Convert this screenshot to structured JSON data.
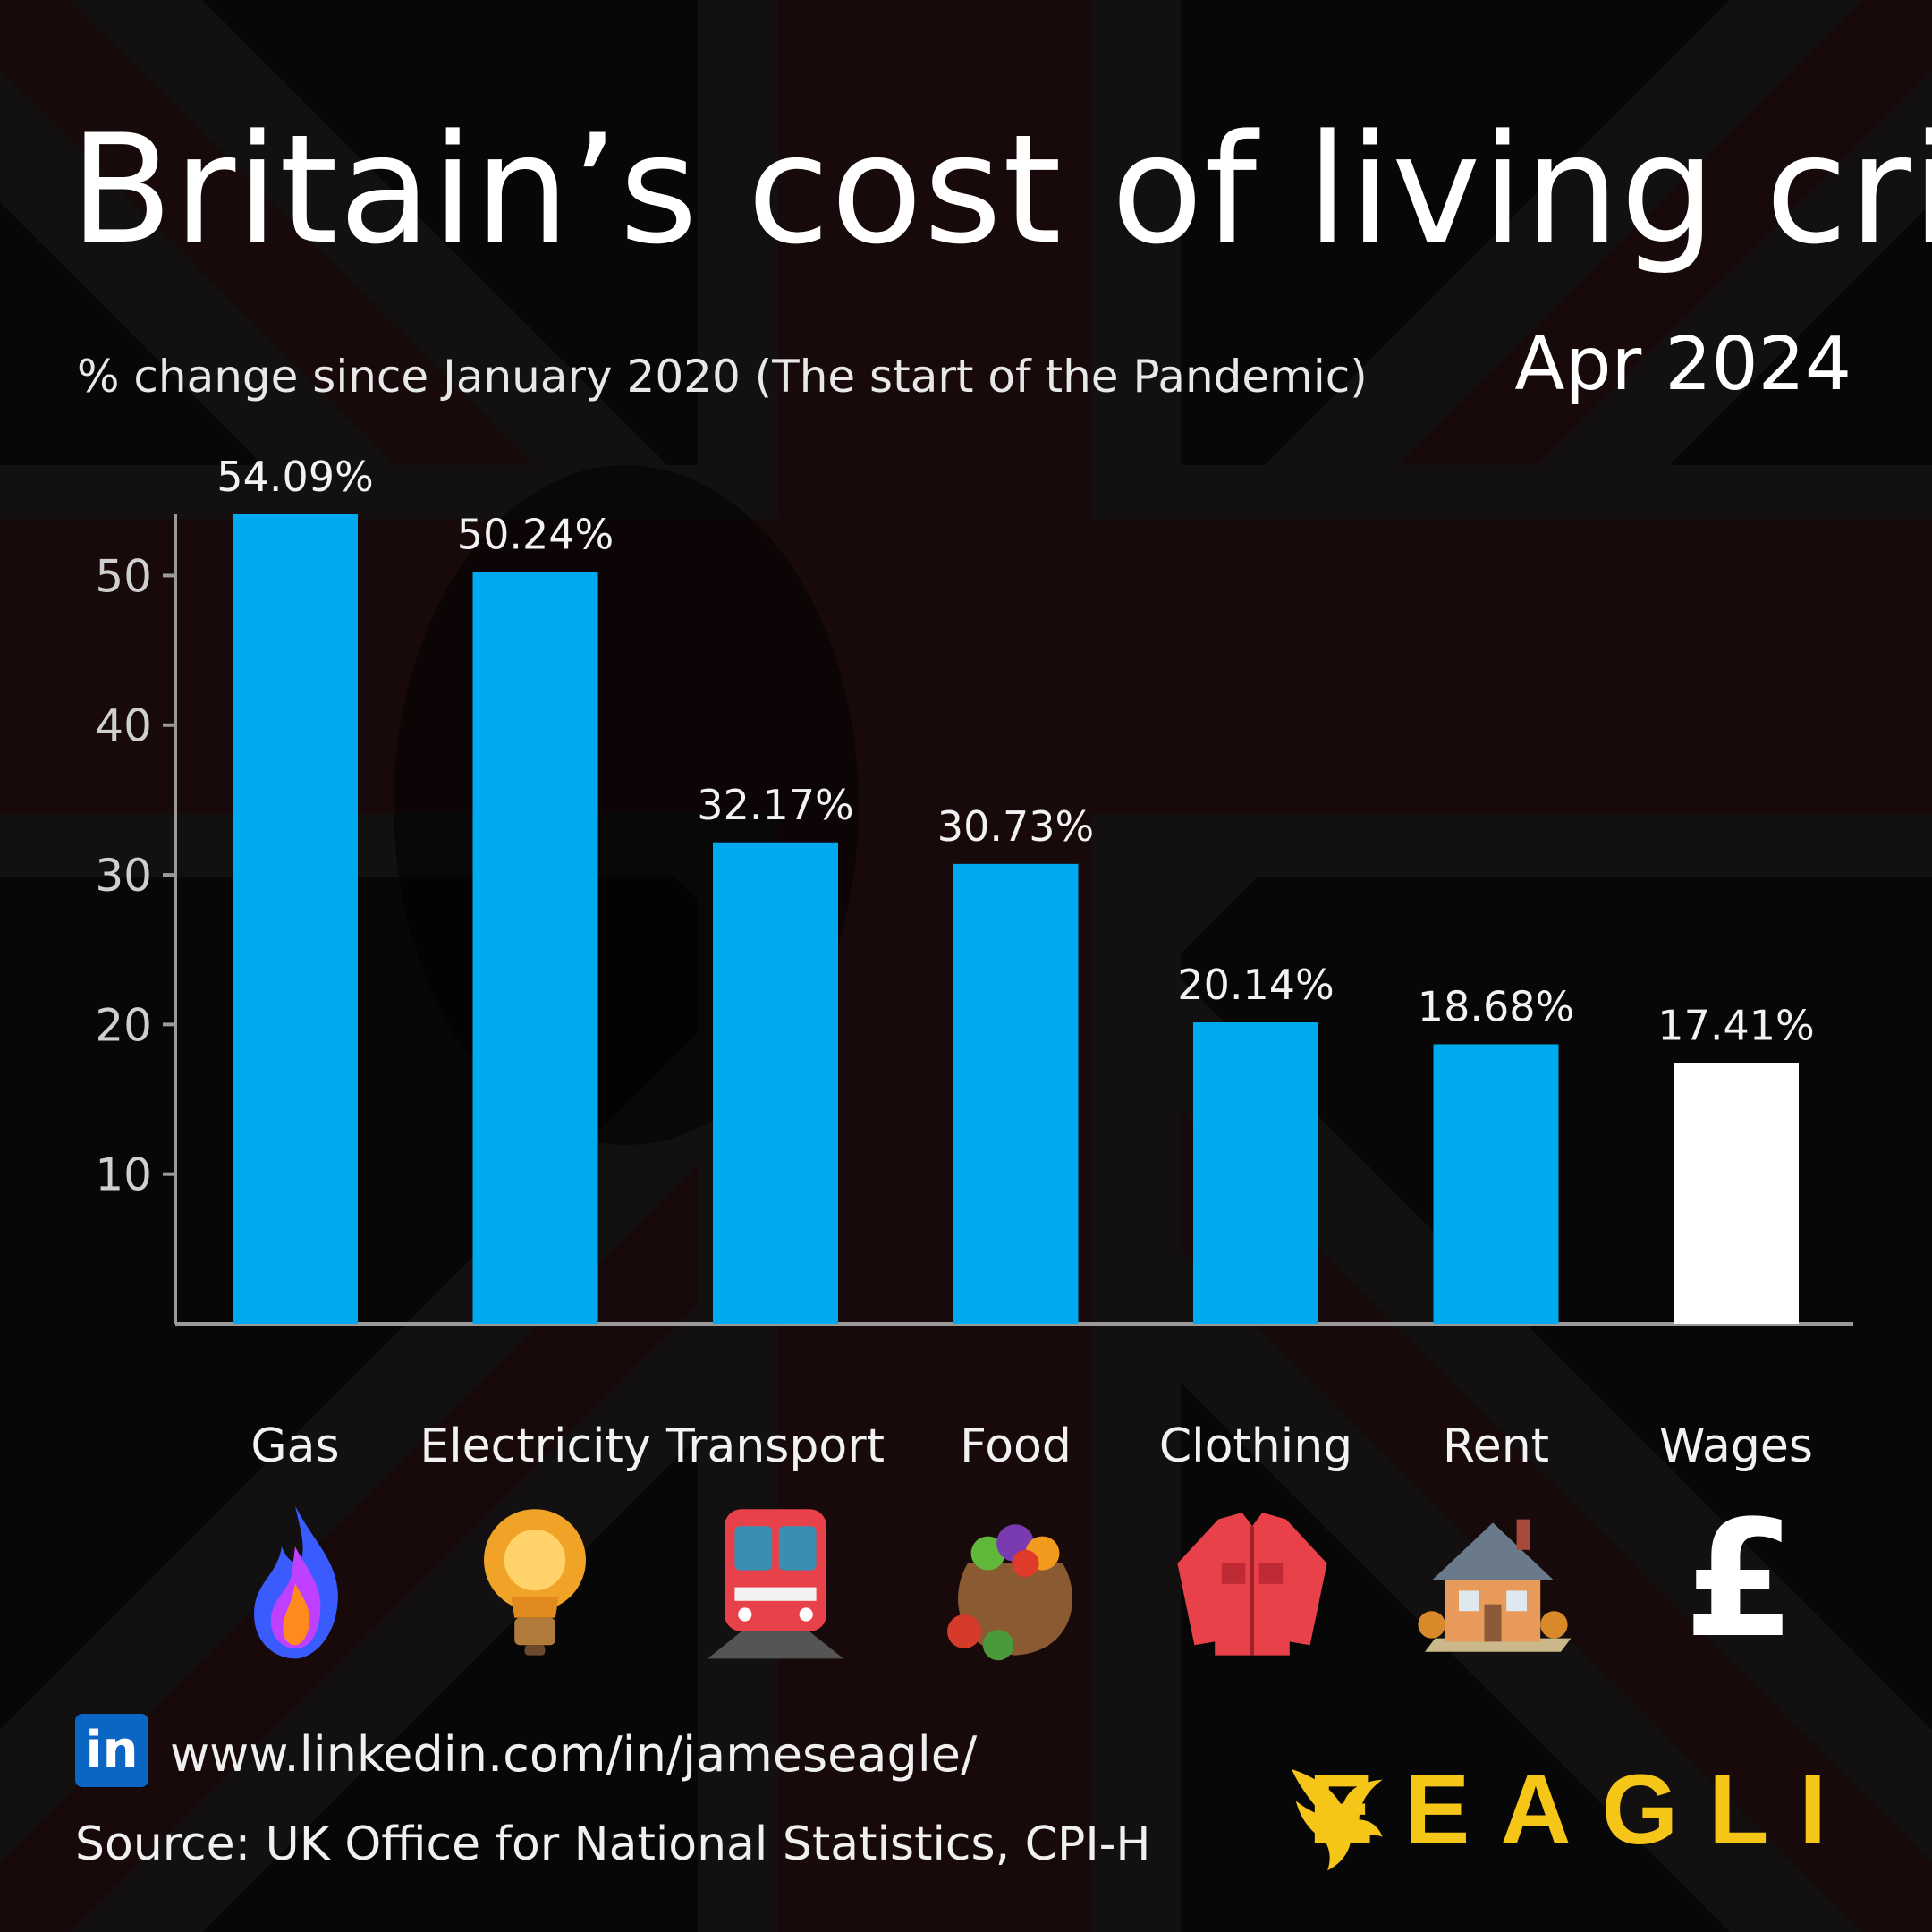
{
  "title": "Britain’s cost of living crisis",
  "subtitle": "% change since January 2020 (The start of the Pandemic)",
  "date": "Apr 2024",
  "chart_data": {
    "type": "bar",
    "categories": [
      "Gas",
      "Electricity",
      "Transport",
      "Food",
      "Clothing",
      "Rent",
      "Wages"
    ],
    "values": [
      54.09,
      50.24,
      32.17,
      30.73,
      20.14,
      18.68,
      17.41
    ],
    "value_labels": [
      "54.09%",
      "50.24%",
      "32.17%",
      "30.73%",
      "20.14%",
      "18.68%",
      "17.41%"
    ],
    "ylim": [
      0,
      54.09
    ],
    "yticks": [
      10,
      20,
      30,
      40,
      50
    ],
    "grid": false,
    "colors": {
      "bar": "#00aaf0",
      "highlight_bar": "#ffffff",
      "axis": "#9a9a9a"
    },
    "highlight_category": "Wages"
  },
  "icons": [
    "flame-icon",
    "light-bulb-icon",
    "train-icon",
    "food-sack-icon",
    "shirt-icon",
    "house-icon",
    "pound-sign-icon"
  ],
  "pound_glyph": "£",
  "footer": {
    "linkedin_badge": "in",
    "url": "www.linkedin.com/in/jameseagle/",
    "source": "Source: UK Office for National Statistics, CPI-H",
    "brand": "EEAGLI"
  }
}
